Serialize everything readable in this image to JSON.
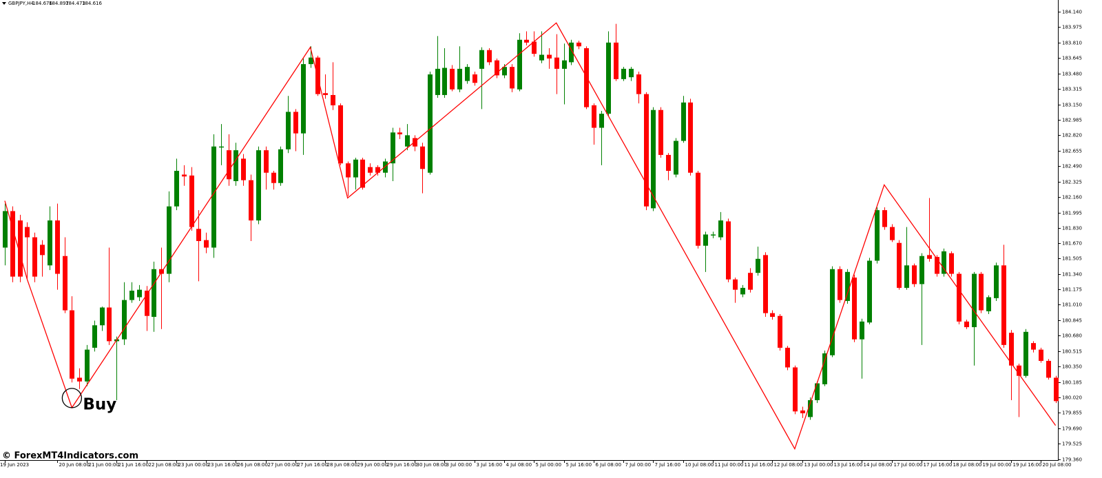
{
  "chart_data": {
    "type": "candlestick",
    "symbol": "GBPJPY,H4",
    "quote": [
      184.676,
      184.897,
      184.473,
      184.616
    ],
    "annotation": "Buy",
    "watermark": "© ForexMT4Indicators.com",
    "up_color": "#008000",
    "down_color": "#ff0000",
    "zigzag_color": "#ff0000",
    "grid": false,
    "categories": [
      "19 Jun 2023",
      null,
      null,
      null,
      null,
      null,
      null,
      "20 Jun 08:00",
      null,
      null,
      null,
      "21 Jun 00:00",
      null,
      null,
      null,
      "21 Jun 16:00",
      null,
      null,
      null,
      "22 Jun 08:00",
      null,
      null,
      null,
      "23 Jun 00:00",
      null,
      null,
      null,
      "23 Jun 16:00",
      null,
      null,
      null,
      "26 Jun 08:00",
      null,
      null,
      null,
      "27 Jun 00:00",
      null,
      null,
      null,
      "27 Jun 16:00",
      null,
      null,
      null,
      "28 Jun 08:00",
      null,
      null,
      null,
      "29 Jun 00:00",
      null,
      null,
      null,
      "29 Jun 16:00",
      null,
      null,
      null,
      "30 Jun 08:00",
      null,
      null,
      null,
      "3 Jul 00:00",
      null,
      null,
      null,
      "3 Jul 16:00",
      null,
      null,
      null,
      "4 Jul 08:00",
      null,
      null,
      null,
      "5 Jul 00:00",
      null,
      null,
      null,
      "5 Jul 16:00",
      null,
      null,
      null,
      "6 Jul 08:00",
      null,
      null,
      null,
      "7 Jul 00:00",
      null,
      null,
      null,
      "7 Jul 16:00",
      null,
      null,
      null,
      "10 Jul 08:00",
      null,
      null,
      null,
      "11 Jul 00:00",
      null,
      null,
      null,
      "11 Jul 16:00",
      null,
      null,
      null,
      "12 Jul 08:00",
      null,
      null,
      null,
      "13 Jul 00:00",
      null,
      null,
      null,
      "13 Jul 16:00",
      null,
      null,
      null,
      "14 Jul 08:00",
      null,
      null,
      null,
      "17 Jul 00:00",
      null,
      null,
      null,
      "17 Jul 16:00",
      null,
      null,
      null,
      "18 Jul 08:00",
      null,
      null,
      null,
      "19 Jul 00:00",
      null,
      null,
      null,
      "19 Jul 16:00",
      null,
      null,
      null,
      "20 Jul 08:00",
      null,
      null
    ],
    "open": [
      181.62,
      182.01,
      181.91,
      181.84,
      181.73,
      181.65,
      181.43,
      181.91,
      181.53,
      180.95,
      180.23,
      180.19,
      180.55,
      180.79,
      180.98,
      180.62,
      180.64,
      181.06,
      181.09,
      181.16,
      180.88,
      181.39,
      181.34,
      182.06,
      182.4,
      182.39,
      181.82,
      181.7,
      181.62,
      182.69,
      182.66,
      182.33,
      182.57,
      182.34,
      181.91,
      182.66,
      182.42,
      182.31,
      182.67,
      183.07,
      182.84,
      183.58,
      183.65,
      183.27,
      183.25,
      183.14,
      182.52,
      182.37,
      182.56,
      182.48,
      182.48,
      182.42,
      182.52,
      182.85,
      182.7,
      182.79,
      182.7,
      182.42,
      183.25,
      183.25,
      183.53,
      183.31,
      183.4,
      183.47,
      183.53,
      183.73,
      183.62,
      183.46,
      183.55,
      183.31,
      183.84,
      183.82,
      183.62,
      183.68,
      183.65,
      183.53,
      183.6,
      183.81,
      183.75,
      183.14,
      182.9,
      183.05,
      183.81,
      183.42,
      183.44,
      183.47,
      183.26,
      182.04,
      183.09,
      182.61,
      182.4,
      182.76,
      183.17,
      182.42,
      181.64,
      181.75,
      181.73,
      181.9,
      181.28,
      181.12,
      181.35,
      181.35,
      181.54,
      180.92,
      180.89,
      180.55,
      180.34,
      179.88,
      179.81,
      179.99,
      180.16,
      180.47,
      181.39,
      181.05,
      181.3,
      180.64,
      180.82,
      181.48,
      182.02,
      181.84,
      181.67,
      181.19,
      181.43,
      181.23,
      181.54,
      181.52,
      181.34,
      181.56,
      181.34,
      180.83,
      180.77,
      181.34,
      180.94,
      181.08,
      181.43,
      180.71,
      180.36,
      180.25,
      180.6,
      180.53,
      180.41,
      180.23
    ],
    "high": [
      182.09,
      182.06,
      181.97,
      181.89,
      181.78,
      181.7,
      182.06,
      182.09,
      181.73,
      181.1,
      180.33,
      180.58,
      180.84,
      180.99,
      181.62,
      180.67,
      181.25,
      181.25,
      181.22,
      181.21,
      181.47,
      181.62,
      182.22,
      182.57,
      182.5,
      182.48,
      182.02,
      181.78,
      182.83,
      182.94,
      182.83,
      182.74,
      182.62,
      182.4,
      182.7,
      182.7,
      182.44,
      182.7,
      183.24,
      183.1,
      183.64,
      183.77,
      183.67,
      183.47,
      183.6,
      183.16,
      182.54,
      182.58,
      182.58,
      182.52,
      182.5,
      182.57,
      182.9,
      182.9,
      182.94,
      182.82,
      182.74,
      183.5,
      183.88,
      183.75,
      183.57,
      183.77,
      183.58,
      183.5,
      183.76,
      183.75,
      183.64,
      183.58,
      183.58,
      183.91,
      183.93,
      183.93,
      183.93,
      183.75,
      183.9,
      183.8,
      183.84,
      183.83,
      183.77,
      183.16,
      183.08,
      183.93,
      184.01,
      183.55,
      183.55,
      183.5,
      183.28,
      183.12,
      183.12,
      182.63,
      182.79,
      183.24,
      183.21,
      182.44,
      181.79,
      181.79,
      182.0,
      181.93,
      181.3,
      181.22,
      181.4,
      181.63,
      181.57,
      180.95,
      180.91,
      180.57,
      180.36,
      179.92,
      180.02,
      180.19,
      180.52,
      181.42,
      181.42,
      181.39,
      181.33,
      180.86,
      181.51,
      182.05,
      182.05,
      181.87,
      181.7,
      181.84,
      181.45,
      181.56,
      182.15,
      181.54,
      181.61,
      181.58,
      181.36,
      180.85,
      181.36,
      181.36,
      181.11,
      181.46,
      181.65,
      180.74,
      180.38,
      180.75,
      180.62,
      180.55,
      180.43,
      180.25
    ],
    "low": [
      181.43,
      181.25,
      181.25,
      181.28,
      181.25,
      181.31,
      181.38,
      181.17,
      180.92,
      180.18,
      180.11,
      180.14,
      180.51,
      180.73,
      180.58,
      179.99,
      180.58,
      181.03,
      181.05,
      180.73,
      180.72,
      180.75,
      181.25,
      182.02,
      182.28,
      181.8,
      181.26,
      181.56,
      181.51,
      182.5,
      182.28,
      182.28,
      182.28,
      181.69,
      181.87,
      182.24,
      182.24,
      182.28,
      182.63,
      182.65,
      182.61,
      183.54,
      183.24,
      183.21,
      183.09,
      182.5,
      182.17,
      182.24,
      182.24,
      182.39,
      182.39,
      182.37,
      182.33,
      182.78,
      182.66,
      182.65,
      182.2,
      182.4,
      183.22,
      183.22,
      183.29,
      183.28,
      183.37,
      183.35,
      183.1,
      183.57,
      183.43,
      183.43,
      183.28,
      183.29,
      183.78,
      183.66,
      183.59,
      183.53,
      183.26,
      183.15,
      183.57,
      183.74,
      183.1,
      182.72,
      182.5,
      183.02,
      183.4,
      183.4,
      183.4,
      183.16,
      182.02,
      182.01,
      182.58,
      182.34,
      182.37,
      182.74,
      182.39,
      181.61,
      181.36,
      181.72,
      181.7,
      181.25,
      181.03,
      181.09,
      181.14,
      181.32,
      180.88,
      180.85,
      180.52,
      180.31,
      179.84,
      179.8,
      179.78,
      179.96,
      180.14,
      180.45,
      181.03,
      181.02,
      180.61,
      180.22,
      180.8,
      181.45,
      181.81,
      181.68,
      181.17,
      181.17,
      181.2,
      180.58,
      181.47,
      181.31,
      181.31,
      181.31,
      180.8,
      180.75,
      180.36,
      180.92,
      180.91,
      181.05,
      180.55,
      179.99,
      179.81,
      180.23,
      180.5,
      180.39,
      180.21,
      179.96
    ],
    "close": [
      182.01,
      181.31,
      181.31,
      181.73,
      181.31,
      181.54,
      181.91,
      181.34,
      180.95,
      180.22,
      180.19,
      180.53,
      180.79,
      180.98,
      180.62,
      180.64,
      181.06,
      181.16,
      181.17,
      180.89,
      181.39,
      181.34,
      182.06,
      182.44,
      182.38,
      181.84,
      181.69,
      181.62,
      182.7,
      182.7,
      182.35,
      182.66,
      182.34,
      181.91,
      182.66,
      182.42,
      182.31,
      182.67,
      183.07,
      182.84,
      183.58,
      183.65,
      183.26,
      183.25,
      183.14,
      182.52,
      182.37,
      182.56,
      182.26,
      182.42,
      182.42,
      182.54,
      182.85,
      182.83,
      182.82,
      182.7,
      182.46,
      183.47,
      183.53,
      183.54,
      183.31,
      183.53,
      183.55,
      183.38,
      183.73,
      183.6,
      183.46,
      183.55,
      183.32,
      183.84,
      183.81,
      183.69,
      183.68,
      183.64,
      183.53,
      183.62,
      183.81,
      183.77,
      183.12,
      182.9,
      183.05,
      183.81,
      183.42,
      183.53,
      183.53,
      183.26,
      182.06,
      183.09,
      182.61,
      182.44,
      182.76,
      183.17,
      182.42,
      181.64,
      181.76,
      181.76,
      181.91,
      181.28,
      181.17,
      181.19,
      181.17,
      181.5,
      180.92,
      180.88,
      180.55,
      180.34,
      179.87,
      179.85,
      179.99,
      180.17,
      180.49,
      181.39,
      181.06,
      181.36,
      180.64,
      180.83,
      181.48,
      182.02,
      181.84,
      181.7,
      181.19,
      181.43,
      181.23,
      181.53,
      181.5,
      181.34,
      181.58,
      181.34,
      180.83,
      180.77,
      181.34,
      180.95,
      181.09,
      181.43,
      180.58,
      180.36,
      180.25,
      180.72,
      180.53,
      180.41,
      180.23,
      179.98
    ],
    "zigzag": {
      "x": [
        0,
        3,
        9,
        41,
        46,
        74,
        106,
        118,
        141
      ],
      "values": [
        182.12,
        181.28,
        179.91,
        183.76,
        182.15,
        184.02,
        179.47,
        182.29,
        179.72
      ]
    },
    "ylim": [
      179.35,
      184.265
    ],
    "yticks": [
      {
        "value": 184.14,
        "label": "184.140"
      },
      183.975,
      {
        "value": 183.81,
        "label": "183.810"
      },
      183.645,
      {
        "value": 183.48,
        "label": "183.480"
      },
      183.315,
      {
        "value": 183.15,
        "label": "183.150"
      },
      182.985,
      {
        "value": 182.82,
        "label": "182.820"
      },
      182.655,
      {
        "value": 182.49,
        "label": "182.490"
      },
      182.325,
      {
        "value": 182.16,
        "label": "182.160"
      },
      181.995,
      {
        "value": 181.83,
        "label": "181.830"
      },
      {
        "value": 181.67,
        "label": "181.670"
      },
      181.505,
      {
        "value": 181.34,
        "label": "181.340"
      },
      181.175,
      {
        "value": 181.01,
        "label": "181.010"
      },
      180.845,
      {
        "value": 180.68,
        "label": "180.680"
      },
      180.515,
      {
        "value": 180.35,
        "label": "180.350"
      },
      180.185,
      {
        "value": 180.02,
        "label": "180.020"
      },
      179.855,
      {
        "value": 179.69,
        "label": "179.690"
      },
      179.525,
      {
        "value": 179.36,
        "label": "179.360"
      }
    ]
  }
}
